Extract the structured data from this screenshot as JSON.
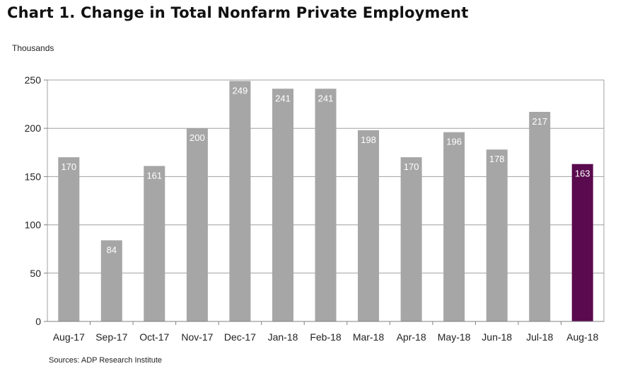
{
  "chart_data": {
    "type": "bar",
    "title": "Chart 1. Change in Total Nonfarm Private Employment",
    "ylabel": "Thousands",
    "xlabel": "",
    "ylim": [
      0,
      250
    ],
    "yticks": [
      0,
      50,
      100,
      150,
      200,
      250
    ],
    "grid": true,
    "legend": "none",
    "categories": [
      "Aug-17",
      "Sep-17",
      "Oct-17",
      "Nov-17",
      "Dec-17",
      "Jan-18",
      "Feb-18",
      "Mar-18",
      "Apr-18",
      "May-18",
      "Jun-18",
      "Jul-18",
      "Aug-18"
    ],
    "values": [
      170,
      84,
      161,
      200,
      249,
      241,
      241,
      198,
      170,
      196,
      178,
      217,
      163
    ],
    "colors": {
      "bar": "#a6a6a6",
      "highlight": "#5a0a4e",
      "grid": "#a0a0a0",
      "data_label": "#ffffff"
    },
    "highlight_index": 12,
    "source": "Sources: ADP Research Institute"
  }
}
